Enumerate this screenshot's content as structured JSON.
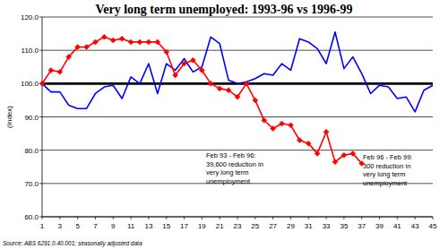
{
  "chart_data": {
    "type": "line",
    "title": "Very long term unemployed: 1993-96 vs 1996-99",
    "y_label": "(Index)",
    "source": "Source: ABS 6291.0.40.001; seasonally adjusted data",
    "x": [
      1,
      2,
      3,
      4,
      5,
      6,
      7,
      8,
      9,
      10,
      11,
      12,
      13,
      14,
      15,
      16,
      17,
      18,
      19,
      20,
      21,
      22,
      23,
      24,
      25,
      26,
      27,
      28,
      29,
      30,
      31,
      32,
      33,
      34,
      35,
      36,
      37,
      38,
      39,
      40,
      41,
      42,
      43,
      44,
      45
    ],
    "xlim": [
      1,
      45
    ],
    "xticks": [
      1,
      3,
      5,
      7,
      9,
      11,
      13,
      15,
      17,
      19,
      21,
      23,
      25,
      27,
      29,
      31,
      33,
      35,
      37,
      39,
      41,
      43,
      45
    ],
    "ylim": [
      60,
      120
    ],
    "yticks": [
      {
        "value": 60,
        "label": "60.0"
      },
      {
        "value": 70,
        "label": "70.0"
      },
      {
        "value": 80,
        "label": "80.0"
      },
      {
        "value": 90,
        "label": "90.0"
      },
      {
        "value": 100,
        "label": "100.0"
      },
      {
        "value": 110,
        "label": "110.0"
      },
      {
        "value": 120,
        "label": "120.0"
      }
    ],
    "grid": true,
    "series": [
      {
        "color": "#000000",
        "marker": "none",
        "line_style": "bold",
        "values": [
          100,
          100,
          100,
          100,
          100,
          100,
          100,
          100,
          100,
          100,
          100,
          100,
          100,
          100,
          100,
          100,
          100,
          100,
          100,
          100,
          100,
          100,
          100,
          100,
          100,
          100,
          100,
          100,
          100,
          100,
          100,
          100,
          100,
          100,
          100,
          100,
          100,
          100,
          100,
          100,
          100,
          100,
          100,
          100,
          100
        ]
      },
      {
        "color": "#0000ff",
        "marker": "none",
        "line_style": "solid",
        "values": [
          100,
          97.5,
          97.5,
          93.5,
          92.5,
          92.5,
          97,
          99,
          99.5,
          95.5,
          102,
          100,
          106,
          97,
          106,
          104,
          107.5,
          103.5,
          105,
          114,
          112,
          101,
          100,
          100.5,
          101.5,
          103,
          102.5,
          106,
          104,
          113.5,
          112.5,
          110.5,
          106,
          115.5,
          104.5,
          108,
          103,
          97,
          99.5,
          99,
          95.5,
          96,
          91.5,
          98,
          99.5
        ]
      },
      {
        "color": "#ff0000",
        "marker": "diamond",
        "line_style": "solid",
        "values": [
          100,
          104,
          103.5,
          108,
          111,
          111,
          112.5,
          114,
          113,
          113.5,
          112.5,
          112.5,
          112.5,
          112.5,
          109.5,
          102.5,
          106,
          107,
          104,
          100,
          98.5,
          98,
          96,
          100,
          95,
          89,
          86.5,
          88,
          87.5,
          83,
          82,
          79,
          85.5,
          76.5,
          78.5,
          79,
          76,
          null,
          null,
          null,
          null,
          null,
          null,
          null,
          null
        ]
      }
    ],
    "annotations": [
      {
        "lines": [
          "Feb 93 - Feb 96:",
          "39,600 reduction in",
          "very long term",
          "unemployment"
        ]
      },
      {
        "lines": [
          "Feb 96 - Feb 99:",
          "300 reduction in",
          "very long term",
          "unemployment"
        ]
      }
    ]
  }
}
